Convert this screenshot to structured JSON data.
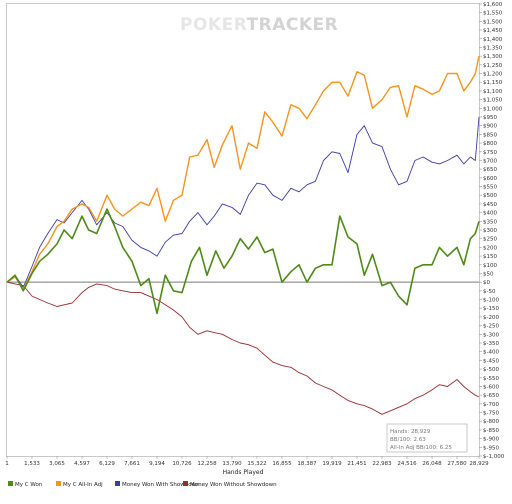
{
  "watermark": {
    "part1": "POKER",
    "part2": "TRACKER"
  },
  "stats": {
    "hands": "Hands: 28,929",
    "bb100": "BB/100: 2.63",
    "allin": "All-In Adj BB/100: 6.25"
  },
  "colors": {
    "my_c_won": "#4e8a18",
    "all_in_adj": "#f7941d",
    "showdown": "#3c3ca8",
    "non_showdown": "#9b2b2b",
    "zero_line": "#7a7a7a",
    "frame": "#c9c9c9",
    "watermark_light": "#e6e6e6",
    "watermark_dark": "#d3d3d3"
  },
  "chart_data": {
    "type": "line",
    "title": "",
    "xlabel": "Hands Played",
    "ylabel": "",
    "xlim": [
      1,
      28929
    ],
    "ylim": [
      -1000,
      1600
    ],
    "grid": false,
    "legend_position": "bottom",
    "y_ticks": [
      "$1,600",
      "$1,550",
      "$1,500",
      "$1,450",
      "$1,400",
      "$1,350",
      "$1,300",
      "$1,250",
      "$1,200",
      "$1,150",
      "$1,100",
      "$1,050",
      "$1,000",
      "$950",
      "$900",
      "$850",
      "$800",
      "$750",
      "$700",
      "$650",
      "$600",
      "$550",
      "$500",
      "$450",
      "$400",
      "$350",
      "$300",
      "$250",
      "$200",
      "$150",
      "$100",
      "$50",
      "$0",
      "$-50",
      "$-100",
      "$-150",
      "$-200",
      "$-250",
      "$-300",
      "$-350",
      "$-400",
      "$-450",
      "$-500",
      "$-550",
      "$-600",
      "$-650",
      "$-700",
      "$-750",
      "$-800",
      "$-850",
      "$-900",
      "$-950",
      "$-1,000"
    ],
    "x_ticks": [
      "1",
      "1,533",
      "3,065",
      "4,597",
      "6,129",
      "7,661",
      "9,194",
      "10,726",
      "12,258",
      "13,790",
      "15,322",
      "16,855",
      "18,387",
      "19,919",
      "21,451",
      "22,983",
      "24,516",
      "26,048",
      "27,580",
      "28,929"
    ],
    "series": [
      {
        "name": "My C Won",
        "x": [
          1,
          500,
          1000,
          1533,
          2000,
          2500,
          3065,
          3500,
          4000,
          4597,
          5000,
          5500,
          6129,
          6600,
          7100,
          7661,
          8200,
          8700,
          9194,
          9700,
          10200,
          10726,
          11300,
          11800,
          12258,
          12800,
          13300,
          13790,
          14300,
          14800,
          15322,
          15800,
          16300,
          16855,
          17400,
          17900,
          18387,
          18900,
          19400,
          19919,
          20400,
          20900,
          21451,
          21900,
          22400,
          22983,
          23500,
          24000,
          24516,
          25000,
          25500,
          26048,
          26500,
          27000,
          27580,
          28000,
          28400,
          28700,
          28929
        ],
        "values": [
          0,
          40,
          -50,
          50,
          120,
          160,
          220,
          300,
          250,
          380,
          300,
          280,
          420,
          320,
          200,
          120,
          -20,
          20,
          -180,
          40,
          -50,
          -60,
          120,
          200,
          40,
          180,
          80,
          150,
          250,
          190,
          260,
          170,
          190,
          0,
          60,
          100,
          0,
          80,
          100,
          100,
          380,
          260,
          220,
          40,
          160,
          -20,
          0,
          -80,
          -130,
          80,
          100,
          100,
          200,
          150,
          200,
          100,
          250,
          280,
          350
        ]
      },
      {
        "name": "My C All-In Adj",
        "x": [
          1,
          500,
          1000,
          1533,
          2000,
          2500,
          3065,
          3500,
          4000,
          4597,
          5000,
          5500,
          6129,
          6600,
          7100,
          7661,
          8200,
          8700,
          9194,
          9700,
          10200,
          10726,
          11200,
          11700,
          12258,
          12700,
          13200,
          13790,
          14300,
          14800,
          15322,
          15800,
          16300,
          16855,
          17400,
          17900,
          18387,
          18900,
          19400,
          19919,
          20400,
          20900,
          21451,
          21900,
          22400,
          22983,
          23500,
          24000,
          24516,
          25000,
          25500,
          26048,
          26500,
          27000,
          27580,
          28000,
          28400,
          28700,
          28929
        ],
        "values": [
          0,
          30,
          -40,
          60,
          160,
          220,
          320,
          350,
          420,
          450,
          430,
          350,
          500,
          420,
          380,
          420,
          460,
          440,
          540,
          350,
          470,
          500,
          720,
          730,
          820,
          660,
          790,
          900,
          650,
          800,
          770,
          980,
          920,
          840,
          1020,
          1000,
          940,
          1020,
          1100,
          1150,
          1150,
          1070,
          1210,
          1190,
          1000,
          1050,
          1120,
          1130,
          950,
          1130,
          1110,
          1080,
          1100,
          1200,
          1200,
          1100,
          1150,
          1200,
          1300
        ]
      },
      {
        "name": "Money Won With Showdown",
        "x": [
          1,
          500,
          1000,
          1533,
          2000,
          2500,
          3065,
          3500,
          4000,
          4597,
          5000,
          5500,
          6129,
          6600,
          7100,
          7661,
          8200,
          8700,
          9194,
          9700,
          10200,
          10726,
          11200,
          11700,
          12258,
          12700,
          13200,
          13790,
          14300,
          14800,
          15322,
          15800,
          16300,
          16855,
          17400,
          17900,
          18387,
          18900,
          19400,
          19919,
          20400,
          20900,
          21451,
          21900,
          22400,
          22983,
          23500,
          24000,
          24516,
          25000,
          25500,
          26048,
          26500,
          27000,
          27580,
          28000,
          28400,
          28700,
          28929
        ],
        "values": [
          0,
          40,
          -30,
          90,
          200,
          280,
          360,
          340,
          400,
          470,
          420,
          330,
          400,
          340,
          320,
          240,
          200,
          180,
          150,
          230,
          270,
          280,
          350,
          400,
          330,
          380,
          450,
          430,
          390,
          500,
          570,
          560,
          500,
          470,
          540,
          520,
          560,
          580,
          700,
          750,
          740,
          630,
          850,
          900,
          800,
          780,
          650,
          560,
          580,
          700,
          720,
          690,
          680,
          700,
          730,
          680,
          720,
          700,
          950
        ]
      },
      {
        "name": "Money Won Without Showdown",
        "x": [
          1,
          500,
          1000,
          1533,
          2000,
          2500,
          3065,
          3500,
          4000,
          4597,
          5000,
          5500,
          6129,
          6600,
          7100,
          7661,
          8200,
          8700,
          9194,
          9700,
          10200,
          10726,
          11200,
          11700,
          12258,
          12700,
          13200,
          13790,
          14300,
          14800,
          15322,
          15800,
          16300,
          16855,
          17400,
          17900,
          18387,
          18900,
          19400,
          19919,
          20400,
          20900,
          21451,
          21900,
          22400,
          22983,
          23500,
          24000,
          24516,
          25000,
          25500,
          26048,
          26500,
          27000,
          27580,
          28000,
          28400,
          28700,
          28929
        ],
        "values": [
          0,
          -10,
          -20,
          -80,
          -100,
          -120,
          -140,
          -130,
          -120,
          -60,
          -30,
          -10,
          -20,
          -40,
          -50,
          -60,
          -60,
          -80,
          -100,
          -130,
          -160,
          -200,
          -260,
          -300,
          -280,
          -290,
          -300,
          -330,
          -350,
          -360,
          -380,
          -420,
          -460,
          -480,
          -490,
          -520,
          -540,
          -580,
          -600,
          -620,
          -650,
          -680,
          -700,
          -710,
          -730,
          -760,
          -740,
          -720,
          -700,
          -670,
          -650,
          -620,
          -590,
          -600,
          -560,
          -600,
          -630,
          -650,
          -660
        ]
      }
    ]
  }
}
